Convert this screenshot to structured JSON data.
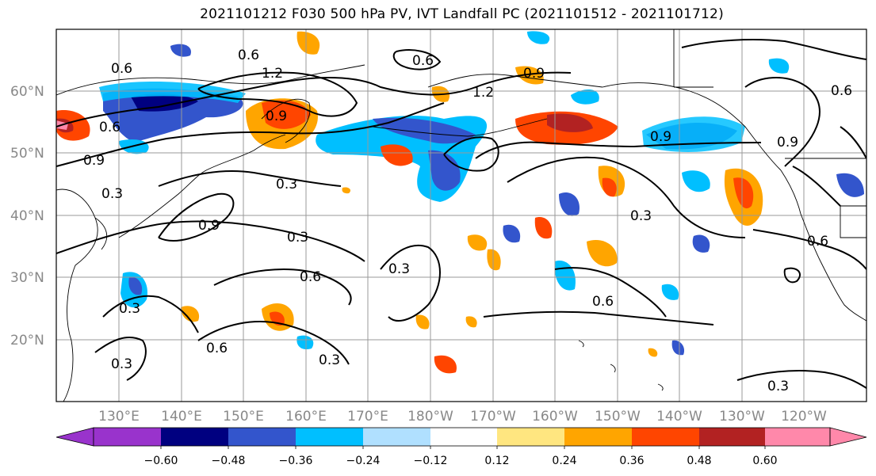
{
  "title": "2021101212 F030 500 hPa PV, IVT Landfall PC (2021101512 - 2021101712)",
  "map": {
    "lat_labels": [
      "60°N",
      "50°N",
      "40°N",
      "30°N",
      "20°N"
    ],
    "lon_labels": [
      "130°E",
      "140°E",
      "150°E",
      "160°E",
      "170°E",
      "180°W",
      "170°W",
      "160°W",
      "150°W",
      "140°W",
      "130°W",
      "120°W"
    ],
    "contour_labels": [
      "0.6",
      "1.2",
      "0.9",
      "0.6",
      "0.9",
      "0.3",
      "0.3",
      "0.9",
      "0.3",
      "0.6",
      "0.3",
      "0.3",
      "0.6",
      "0.3",
      "0.6",
      "0.3",
      "0.9",
      "1.2",
      "0.9",
      "0.3",
      "0.6",
      "0.6",
      "0.6",
      "0.3",
      "0.9",
      "0.6"
    ]
  },
  "colorbar": {
    "tick_labels": [
      "−0.60",
      "−0.48",
      "−0.36",
      "−0.24",
      "−0.12",
      "0.12",
      "0.24",
      "0.36",
      "0.48",
      "0.60"
    ],
    "colors": [
      "#9933cc",
      "#000080",
      "#3355cc",
      "#00bfff",
      "#b0e0ff",
      "#ffffff",
      "#ffe680",
      "#ffa500",
      "#ff4500",
      "#b22222",
      "#ff88aa"
    ]
  },
  "colors": {
    "grid": "#999999",
    "coast": "#000000",
    "label": "#888888"
  }
}
